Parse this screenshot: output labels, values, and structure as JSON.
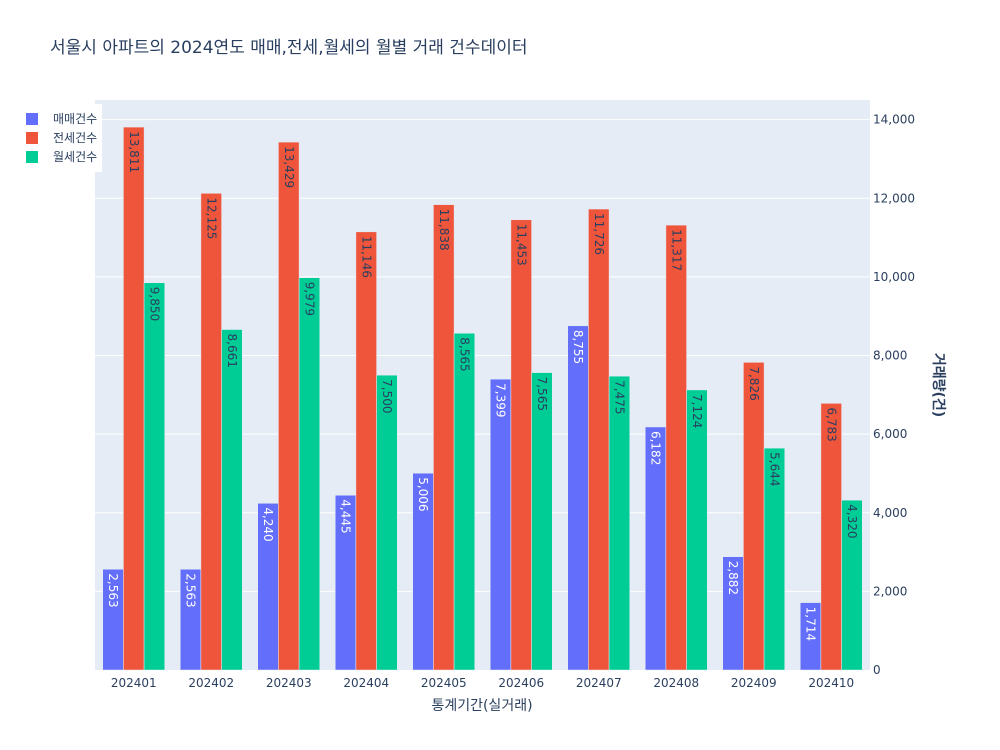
{
  "chart_data": {
    "type": "bar",
    "title": "서울시 아파트의 2024연도 매매,전세,월세의 월별 거래 건수데이터",
    "xlabel": "통계기간(실거래)",
    "ylabel": "거래량(건)",
    "categories": [
      "202401",
      "202402",
      "202403",
      "202404",
      "202405",
      "202406",
      "202407",
      "202408",
      "202409",
      "202410"
    ],
    "series": [
      {
        "name": "매매건수",
        "color": "#636efa",
        "label_color": "#ffffff",
        "values": [
          2563,
          2563,
          4240,
          4445,
          5006,
          7399,
          8755,
          6182,
          2882,
          1714
        ],
        "labels": [
          "2,563",
          "2,563",
          "4,240",
          "4,445",
          "5,006",
          "7,399",
          "8,755",
          "6,182",
          "2,882",
          "1,714"
        ]
      },
      {
        "name": "전세건수",
        "color": "#ef553b",
        "label_color": "#2a3f5f",
        "values": [
          13811,
          12125,
          13429,
          11146,
          11838,
          11453,
          11726,
          11317,
          7826,
          6783
        ],
        "labels": [
          "13,811",
          "12,125",
          "13,429",
          "11,146",
          "11,838",
          "11,453",
          "11,726",
          "11,317",
          "7,826",
          "6,783"
        ]
      },
      {
        "name": "월세건수",
        "color": "#00cc96",
        "label_color": "#2a3f5f",
        "values": [
          9850,
          8661,
          9979,
          7500,
          8565,
          7565,
          7475,
          7124,
          5644,
          4320
        ],
        "labels": [
          "9,850",
          "8,661",
          "9,979",
          "7,500",
          "8,565",
          "7,565",
          "7,475",
          "7,124",
          "5,644",
          "4,320"
        ]
      }
    ],
    "y_ticks": [
      {
        "value": 0,
        "label": "0"
      },
      {
        "value": 2000,
        "label": "2,000"
      },
      {
        "value": 4000,
        "label": "4,000"
      },
      {
        "value": 6000,
        "label": "6,000"
      },
      {
        "value": 8000,
        "label": "8,000"
      },
      {
        "value": 10000,
        "label": "10,000"
      },
      {
        "value": 12000,
        "label": "12,000"
      },
      {
        "value": 14000,
        "label": "14,000"
      }
    ],
    "ylim": [
      0,
      14500
    ],
    "y_axis_side": "right",
    "grid": true,
    "legend_position": "top-left",
    "plot_background": "#e5ecf6"
  }
}
